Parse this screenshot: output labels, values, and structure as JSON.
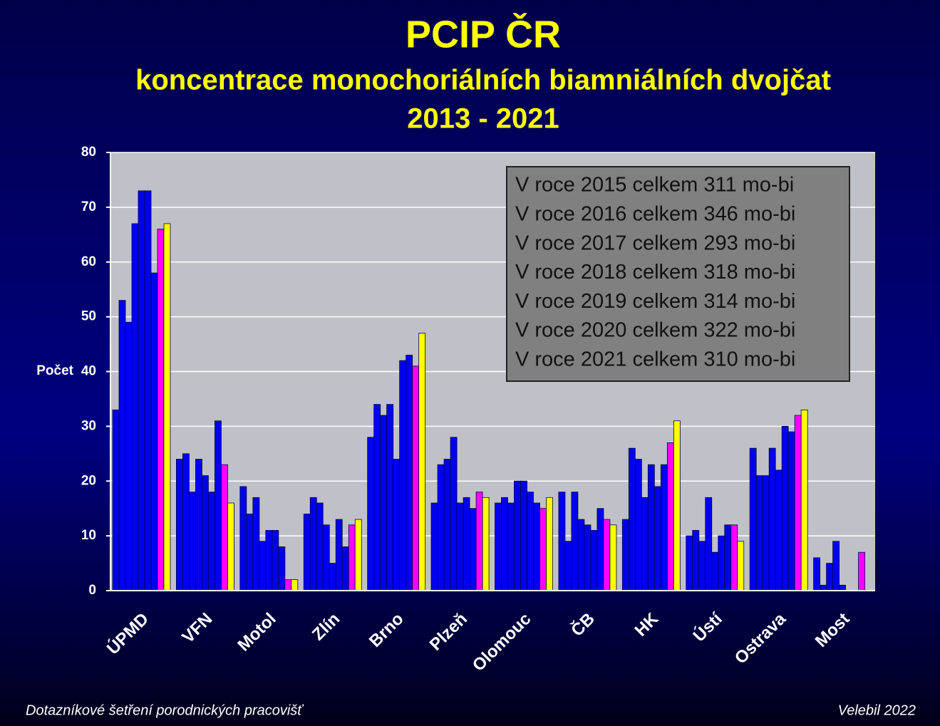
{
  "chart_data": {
    "type": "bar",
    "title": "PCIP ČR",
    "subtitle": "koncentrace monochoriálních biamniálních dvojčat",
    "period": "2013 - 2021",
    "ylabel": "Počet",
    "categories": [
      "ÚPMD",
      "VFN",
      "Motol",
      "Zlín",
      "Brno",
      "Plzeň",
      "Olomouc",
      "ČB",
      "HK",
      "Ústí",
      "Ostrava",
      "Most"
    ],
    "series": [
      {
        "color": "#0000f0",
        "values": [
          33,
          24,
          19,
          14,
          28,
          16,
          16,
          18,
          13,
          10,
          26,
          6
        ]
      },
      {
        "color": "#0000f0",
        "values": [
          53,
          25,
          14,
          17,
          34,
          23,
          17,
          9,
          26,
          11,
          21,
          1
        ]
      },
      {
        "color": "#0000f0",
        "values": [
          49,
          18,
          17,
          16,
          32,
          24,
          16,
          18,
          24,
          9,
          21,
          5
        ]
      },
      {
        "color": "#0000f0",
        "values": [
          67,
          24,
          9,
          12,
          34,
          28,
          20,
          13,
          17,
          17,
          26,
          9
        ]
      },
      {
        "color": "#0000f0",
        "values": [
          73,
          21,
          11,
          5,
          24,
          16,
          20,
          12,
          23,
          7,
          22,
          1
        ]
      },
      {
        "color": "#0000f0",
        "values": [
          73,
          18,
          11,
          13,
          42,
          17,
          18,
          11,
          19,
          10,
          30,
          null
        ]
      },
      {
        "color": "#0000f0",
        "values": [
          58,
          31,
          8,
          8,
          43,
          15,
          16,
          15,
          23,
          12,
          29,
          null
        ]
      },
      {
        "color": "#ff00ff",
        "values": [
          66,
          23,
          2,
          12,
          41,
          18,
          15,
          13,
          27,
          12,
          32,
          7
        ]
      },
      {
        "color": "#ffff00",
        "values": [
          67,
          16,
          2,
          13,
          47,
          17,
          17,
          12,
          31,
          9,
          33,
          null
        ]
      }
    ],
    "ylim": [
      0,
      80
    ],
    "yticks": [
      0,
      10,
      20,
      30,
      40,
      50,
      60,
      70,
      80
    ],
    "grid": true,
    "annotation": [
      "V roce 2015 celkem 311 mo-bi",
      "V roce 2016 celkem 346 mo-bi",
      "V roce 2017 celkem 293 mo-bi",
      "V roce 2018 celkem 318 mo-bi",
      "V roce 2019 celkem 314 mo-bi",
      "V roce 2020 celkem 322 mo-bi",
      "V roce 2021 celkem 310 mo-bi"
    ],
    "source": "Dotazníkové šetření porodnických pracovišť",
    "credit": "Velebil 2022"
  }
}
